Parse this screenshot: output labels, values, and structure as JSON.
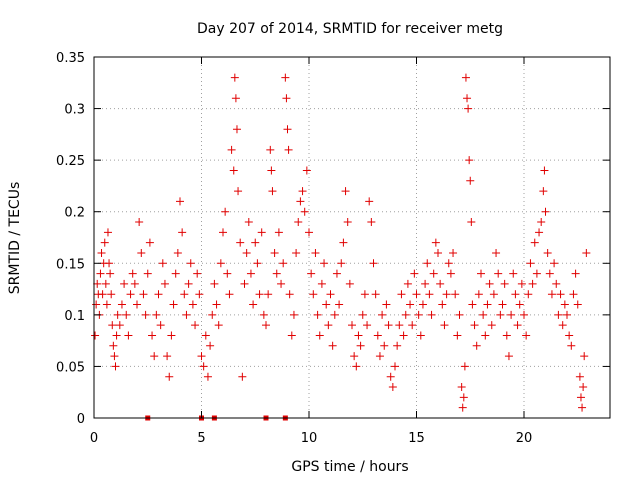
{
  "chart_data": {
    "type": "scatter",
    "title": "Day 207 of 2014, SRMTID for receiver metg",
    "xlabel": "GPS time / hours",
    "ylabel": "SRMTID / TECUs",
    "xlim": [
      0,
      24
    ],
    "ylim": [
      0,
      0.35
    ],
    "x_ticks": [
      0,
      5,
      10,
      15,
      20
    ],
    "x_tick_labels": [
      "0",
      "5",
      "10",
      "15",
      "20"
    ],
    "y_ticks": [
      0,
      0.05,
      0.1,
      0.15,
      0.2,
      0.25,
      0.3,
      0.35
    ],
    "y_tick_labels": [
      "0",
      "0.05",
      "0.1",
      "0.15",
      "0.2",
      "0.25",
      "0.3",
      "0.35"
    ],
    "grid": true,
    "marker": "+",
    "colors": {
      "series": "#e00000",
      "grid": "#a0a0a0",
      "axis": "#000000"
    },
    "series": [
      {
        "name": "SRMTID",
        "points": [
          [
            0.05,
            0.08
          ],
          [
            0.1,
            0.11
          ],
          [
            0.15,
            0.13
          ],
          [
            0.2,
            0.12
          ],
          [
            0.25,
            0.1
          ],
          [
            0.3,
            0.14
          ],
          [
            0.35,
            0.16
          ],
          [
            0.4,
            0.12
          ],
          [
            0.45,
            0.15
          ],
          [
            0.5,
            0.17
          ],
          [
            0.55,
            0.13
          ],
          [
            0.6,
            0.11
          ],
          [
            0.65,
            0.18
          ],
          [
            0.7,
            0.15
          ],
          [
            0.75,
            0.14
          ],
          [
            0.8,
            0.12
          ],
          [
            0.85,
            0.09
          ],
          [
            0.9,
            0.07
          ],
          [
            0.95,
            0.06
          ],
          [
            1.0,
            0.05
          ],
          [
            1.05,
            0.08
          ],
          [
            1.1,
            0.1
          ],
          [
            1.2,
            0.09
          ],
          [
            1.3,
            0.11
          ],
          [
            1.4,
            0.13
          ],
          [
            1.5,
            0.1
          ],
          [
            1.6,
            0.08
          ],
          [
            1.7,
            0.12
          ],
          [
            1.8,
            0.14
          ],
          [
            1.9,
            0.13
          ],
          [
            2.0,
            0.11
          ],
          [
            2.1,
            0.19
          ],
          [
            2.2,
            0.16
          ],
          [
            2.3,
            0.12
          ],
          [
            2.4,
            0.1
          ],
          [
            2.5,
            0.14
          ],
          [
            2.6,
            0.17
          ],
          [
            2.7,
            0.08
          ],
          [
            2.8,
            0.06
          ],
          [
            2.9,
            0.1
          ],
          [
            3.0,
            0.12
          ],
          [
            3.1,
            0.09
          ],
          [
            3.2,
            0.15
          ],
          [
            3.3,
            0.13
          ],
          [
            3.4,
            0.06
          ],
          [
            3.5,
            0.04
          ],
          [
            3.6,
            0.08
          ],
          [
            3.7,
            0.11
          ],
          [
            3.8,
            0.14
          ],
          [
            3.9,
            0.16
          ],
          [
            4.0,
            0.21
          ],
          [
            4.1,
            0.18
          ],
          [
            4.2,
            0.12
          ],
          [
            4.3,
            0.1
          ],
          [
            4.4,
            0.13
          ],
          [
            4.5,
            0.15
          ],
          [
            4.6,
            0.11
          ],
          [
            4.7,
            0.09
          ],
          [
            4.8,
            0.14
          ],
          [
            4.9,
            0.12
          ],
          [
            5.0,
            0.06
          ],
          [
            5.1,
            0.05
          ],
          [
            5.2,
            0.08
          ],
          [
            5.3,
            0.04
          ],
          [
            5.4,
            0.07
          ],
          [
            5.5,
            0.1
          ],
          [
            5.6,
            0.13
          ],
          [
            5.7,
            0.11
          ],
          [
            5.8,
            0.09
          ],
          [
            5.9,
            0.15
          ],
          [
            6.0,
            0.18
          ],
          [
            6.1,
            0.2
          ],
          [
            6.2,
            0.14
          ],
          [
            6.3,
            0.12
          ],
          [
            6.4,
            0.26
          ],
          [
            6.5,
            0.24
          ],
          [
            6.55,
            0.33
          ],
          [
            6.6,
            0.31
          ],
          [
            6.65,
            0.28
          ],
          [
            6.7,
            0.22
          ],
          [
            6.8,
            0.17
          ],
          [
            6.9,
            0.04
          ],
          [
            7.0,
            0.13
          ],
          [
            7.1,
            0.16
          ],
          [
            7.2,
            0.19
          ],
          [
            7.3,
            0.14
          ],
          [
            7.4,
            0.11
          ],
          [
            7.5,
            0.17
          ],
          [
            7.6,
            0.15
          ],
          [
            7.7,
            0.12
          ],
          [
            7.8,
            0.18
          ],
          [
            7.9,
            0.1
          ],
          [
            8.0,
            0.09
          ],
          [
            8.1,
            0.12
          ],
          [
            8.2,
            0.26
          ],
          [
            8.25,
            0.24
          ],
          [
            8.3,
            0.22
          ],
          [
            8.4,
            0.16
          ],
          [
            8.5,
            0.14
          ],
          [
            8.6,
            0.18
          ],
          [
            8.7,
            0.13
          ],
          [
            8.8,
            0.15
          ],
          [
            8.9,
            0.33
          ],
          [
            8.95,
            0.31
          ],
          [
            9.0,
            0.28
          ],
          [
            9.05,
            0.26
          ],
          [
            9.1,
            0.12
          ],
          [
            9.2,
            0.08
          ],
          [
            9.3,
            0.1
          ],
          [
            9.4,
            0.16
          ],
          [
            9.5,
            0.19
          ],
          [
            9.6,
            0.21
          ],
          [
            9.7,
            0.22
          ],
          [
            9.8,
            0.2
          ],
          [
            9.9,
            0.24
          ],
          [
            10.0,
            0.18
          ],
          [
            10.1,
            0.14
          ],
          [
            10.2,
            0.12
          ],
          [
            10.3,
            0.16
          ],
          [
            10.4,
            0.1
          ],
          [
            10.5,
            0.08
          ],
          [
            10.6,
            0.13
          ],
          [
            10.7,
            0.15
          ],
          [
            10.8,
            0.11
          ],
          [
            10.9,
            0.09
          ],
          [
            11.0,
            0.12
          ],
          [
            11.1,
            0.07
          ],
          [
            11.2,
            0.1
          ],
          [
            11.3,
            0.14
          ],
          [
            11.4,
            0.11
          ],
          [
            11.5,
            0.15
          ],
          [
            11.6,
            0.17
          ],
          [
            11.7,
            0.22
          ],
          [
            11.8,
            0.19
          ],
          [
            11.9,
            0.13
          ],
          [
            12.0,
            0.09
          ],
          [
            12.1,
            0.06
          ],
          [
            12.2,
            0.05
          ],
          [
            12.3,
            0.08
          ],
          [
            12.4,
            0.07
          ],
          [
            12.5,
            0.1
          ],
          [
            12.6,
            0.12
          ],
          [
            12.7,
            0.09
          ],
          [
            12.8,
            0.21
          ],
          [
            12.9,
            0.19
          ],
          [
            13.0,
            0.15
          ],
          [
            13.1,
            0.12
          ],
          [
            13.2,
            0.08
          ],
          [
            13.3,
            0.06
          ],
          [
            13.4,
            0.1
          ],
          [
            13.5,
            0.07
          ],
          [
            13.6,
            0.11
          ],
          [
            13.7,
            0.09
          ],
          [
            13.8,
            0.04
          ],
          [
            13.9,
            0.03
          ],
          [
            14.0,
            0.05
          ],
          [
            14.1,
            0.07
          ],
          [
            14.2,
            0.09
          ],
          [
            14.3,
            0.12
          ],
          [
            14.4,
            0.08
          ],
          [
            14.5,
            0.1
          ],
          [
            14.6,
            0.13
          ],
          [
            14.7,
            0.11
          ],
          [
            14.8,
            0.09
          ],
          [
            14.9,
            0.14
          ],
          [
            15.0,
            0.12
          ],
          [
            15.1,
            0.1
          ],
          [
            15.2,
            0.08
          ],
          [
            15.3,
            0.11
          ],
          [
            15.4,
            0.13
          ],
          [
            15.5,
            0.15
          ],
          [
            15.6,
            0.12
          ],
          [
            15.7,
            0.1
          ],
          [
            15.8,
            0.14
          ],
          [
            15.9,
            0.17
          ],
          [
            16.0,
            0.16
          ],
          [
            16.1,
            0.13
          ],
          [
            16.2,
            0.11
          ],
          [
            16.3,
            0.09
          ],
          [
            16.4,
            0.12
          ],
          [
            16.5,
            0.15
          ],
          [
            16.6,
            0.14
          ],
          [
            16.7,
            0.16
          ],
          [
            16.8,
            0.12
          ],
          [
            16.9,
            0.08
          ],
          [
            17.0,
            0.1
          ],
          [
            17.1,
            0.03
          ],
          [
            17.15,
            0.01
          ],
          [
            17.2,
            0.02
          ],
          [
            17.25,
            0.05
          ],
          [
            17.3,
            0.33
          ],
          [
            17.35,
            0.31
          ],
          [
            17.4,
            0.3
          ],
          [
            17.45,
            0.25
          ],
          [
            17.5,
            0.23
          ],
          [
            17.55,
            0.19
          ],
          [
            17.6,
            0.11
          ],
          [
            17.7,
            0.09
          ],
          [
            17.8,
            0.07
          ],
          [
            17.9,
            0.12
          ],
          [
            18.0,
            0.14
          ],
          [
            18.1,
            0.1
          ],
          [
            18.2,
            0.08
          ],
          [
            18.3,
            0.11
          ],
          [
            18.4,
            0.13
          ],
          [
            18.5,
            0.09
          ],
          [
            18.6,
            0.12
          ],
          [
            18.7,
            0.16
          ],
          [
            18.8,
            0.14
          ],
          [
            18.9,
            0.1
          ],
          [
            19.0,
            0.11
          ],
          [
            19.1,
            0.13
          ],
          [
            19.2,
            0.08
          ],
          [
            19.3,
            0.06
          ],
          [
            19.4,
            0.1
          ],
          [
            19.5,
            0.14
          ],
          [
            19.6,
            0.12
          ],
          [
            19.7,
            0.09
          ],
          [
            19.8,
            0.11
          ],
          [
            19.9,
            0.13
          ],
          [
            20.0,
            0.1
          ],
          [
            20.1,
            0.08
          ],
          [
            20.2,
            0.12
          ],
          [
            20.3,
            0.15
          ],
          [
            20.4,
            0.13
          ],
          [
            20.5,
            0.17
          ],
          [
            20.6,
            0.14
          ],
          [
            20.7,
            0.18
          ],
          [
            20.8,
            0.19
          ],
          [
            20.9,
            0.22
          ],
          [
            20.95,
            0.24
          ],
          [
            21.0,
            0.2
          ],
          [
            21.1,
            0.16
          ],
          [
            21.2,
            0.14
          ],
          [
            21.3,
            0.12
          ],
          [
            21.4,
            0.15
          ],
          [
            21.5,
            0.13
          ],
          [
            21.6,
            0.1
          ],
          [
            21.7,
            0.12
          ],
          [
            21.8,
            0.09
          ],
          [
            21.9,
            0.11
          ],
          [
            22.0,
            0.1
          ],
          [
            22.1,
            0.08
          ],
          [
            22.2,
            0.07
          ],
          [
            22.3,
            0.12
          ],
          [
            22.4,
            0.14
          ],
          [
            22.5,
            0.11
          ],
          [
            22.6,
            0.04
          ],
          [
            22.65,
            0.02
          ],
          [
            22.7,
            0.01
          ],
          [
            22.75,
            0.03
          ],
          [
            22.8,
            0.06
          ],
          [
            22.9,
            0.16
          ]
        ]
      }
    ],
    "zero_markers": [
      2.5,
      5.0,
      5.6,
      8.0,
      8.9
    ]
  }
}
